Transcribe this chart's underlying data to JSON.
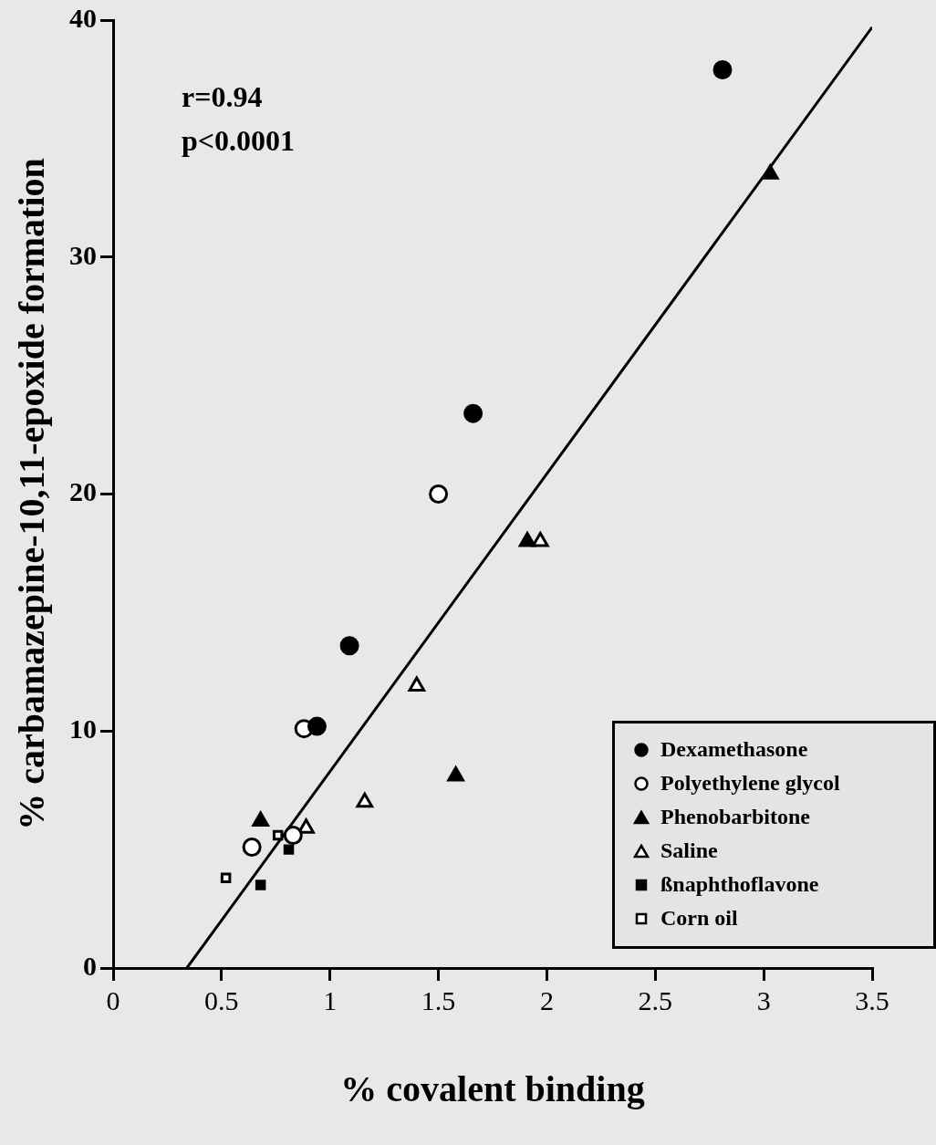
{
  "chart_data": {
    "type": "scatter",
    "xlabel": "% covalent binding",
    "ylabel": "% carbamazepine-10,11-epoxide formation",
    "annotations": [
      "r=0.94",
      "p<0.0001"
    ],
    "xlim": [
      0,
      3.5
    ],
    "xticks": [
      0,
      0.5,
      1,
      1.5,
      2,
      2.5,
      3,
      3.5
    ],
    "ylim": [
      0,
      40
    ],
    "yticks": [
      0,
      10,
      20,
      30,
      40
    ],
    "grid": false,
    "legend": "bottom right",
    "series": [
      {
        "name": "Dexamethasone",
        "color": "#000000",
        "marker": "circle",
        "x": [
          2.81,
          1.66,
          1.09,
          0.94
        ],
        "values": [
          37.9,
          23.4,
          13.6,
          10.2
        ]
      },
      {
        "name": "Polyethylene glycol",
        "color": "#ffffff",
        "marker": "circle",
        "x": [
          1.5,
          0.88,
          0.64,
          0.83
        ],
        "values": [
          20.0,
          10.1,
          5.1,
          5.6
        ]
      },
      {
        "name": "Phenobarbitone",
        "color": "#000000",
        "marker": "triangle",
        "x": [
          3.03,
          1.91,
          1.58,
          0.68
        ],
        "values": [
          33.5,
          18.0,
          8.1,
          6.2
        ]
      },
      {
        "name": "Saline",
        "color": "#ffffff",
        "marker": "triangle",
        "x": [
          1.97,
          1.4,
          1.16,
          0.89
        ],
        "values": [
          18.0,
          11.9,
          7.0,
          5.9
        ]
      },
      {
        "name": "ßnaphthoflavone",
        "color": "#000000",
        "marker": "square",
        "x": [
          0.81,
          0.68
        ],
        "values": [
          5.0,
          3.5
        ]
      },
      {
        "name": "Corn oil",
        "color": "#ffffff",
        "marker": "square",
        "x": [
          0.52,
          0.76
        ],
        "values": [
          3.8,
          5.6
        ]
      },
      {
        "type": "line",
        "color": "#000000",
        "marker": "none",
        "line_style": "solid",
        "x": [
          0.34,
          3.5
        ],
        "values": [
          0,
          39.7
        ]
      }
    ]
  }
}
